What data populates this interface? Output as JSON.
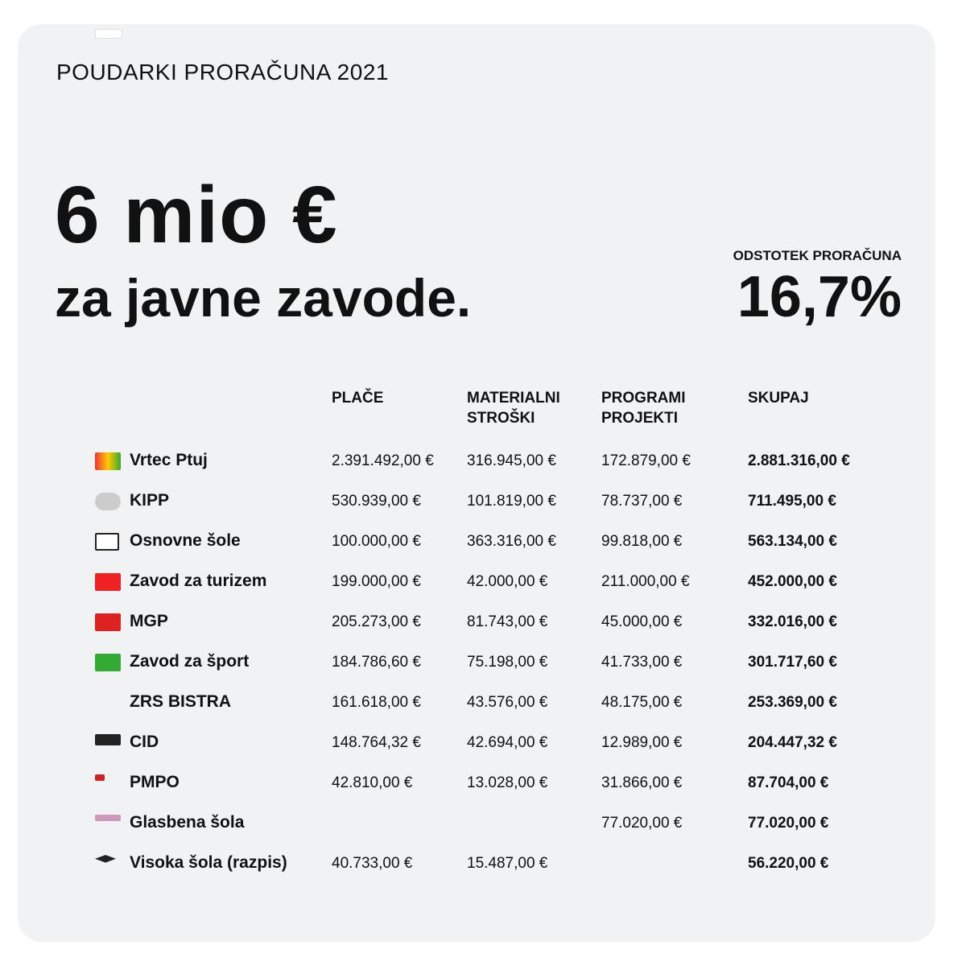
{
  "header": {
    "title": "POUDARKI PRORAČUNA 2021",
    "headline": "6 mio €",
    "subheadline": "za javne zavode.",
    "share_label": "ODSTOTEK PRORAČUNA",
    "share_value": "16,7%"
  },
  "table": {
    "columns": [
      [
        "PLAČE"
      ],
      [
        "MATERIALNI",
        "STROŠKI"
      ],
      [
        "PROGRAMI",
        "PROJEKTI"
      ],
      [
        "SKUPAJ"
      ]
    ],
    "rows": [
      [
        "Vrtec  Ptuj",
        "2.391.492,00 €",
        "316.945,00 €",
        "172.879,00 €",
        "2.881.316,00 €"
      ],
      [
        "KIPP",
        "530.939,00 €",
        "101.819,00 €",
        "78.737,00 €",
        "711.495,00 €"
      ],
      [
        "Osnovne šole",
        "100.000,00 €",
        "363.316,00 €",
        "99.818,00 €",
        "563.134,00 €"
      ],
      [
        "Zavod za turizem",
        "199.000,00 €",
        "42.000,00 €",
        "211.000,00 €",
        "452.000,00 €"
      ],
      [
        "MGP",
        "205.273,00 €",
        "81.743,00 €",
        "45.000,00 €",
        "332.016,00 €"
      ],
      [
        "Zavod za šport",
        "184.786,60 €",
        "75.198,00 €",
        "41.733,00 €",
        "301.717,60 €"
      ],
      [
        "ZRS BISTRA",
        "161.618,00 €",
        "43.576,00 €",
        "48.175,00 €",
        "253.369,00 €"
      ],
      [
        "CID",
        "148.764,32 €",
        "42.694,00 €",
        "12.989,00 €",
        "204.447,32 €"
      ],
      [
        "PMPO",
        "42.810,00 €",
        "13.028,00 €",
        "31.866,00 €",
        "87.704,00 €"
      ],
      [
        "Glasbena šola",
        null,
        null,
        "77.020,00 €",
        "77.020,00 €"
      ],
      [
        "Visoka šola (razpis)",
        "40.733,00 €",
        "15.487,00 €",
        null,
        "56.220,00 €"
      ]
    ]
  }
}
